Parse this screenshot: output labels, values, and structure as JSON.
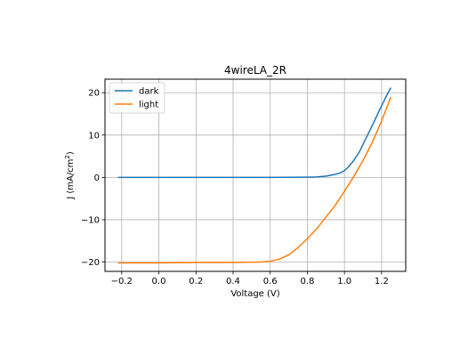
{
  "chart_data": {
    "type": "line",
    "title": "4wireLA_2R",
    "xlabel": "Voltage (V)",
    "ylabel_main": "J (mA/cm",
    "ylabel_sup": "2",
    "ylabel_end": ")",
    "xlim": [
      -0.29,
      1.33
    ],
    "ylim": [
      -22.2,
      23.2
    ],
    "x_ticks": [
      -0.2,
      0.0,
      0.2,
      0.4,
      0.6,
      0.8,
      1.0,
      1.2
    ],
    "x_tick_labels": [
      "−0.2",
      "0.0",
      "0.2",
      "0.4",
      "0.6",
      "0.8",
      "1.0",
      "1.2"
    ],
    "y_ticks": [
      -20,
      -10,
      0,
      10,
      20
    ],
    "y_tick_labels": [
      "−20",
      "−10",
      "0",
      "10",
      "20"
    ],
    "grid": true,
    "legend_position": "top-left",
    "series": [
      {
        "name": "dark",
        "color": "#1f77b4",
        "x": [
          -0.22,
          0.0,
          0.2,
          0.4,
          0.6,
          0.8,
          0.85,
          0.9,
          0.95,
          0.98,
          1.0,
          1.02,
          1.05,
          1.08,
          1.1,
          1.13,
          1.16,
          1.19,
          1.22,
          1.25
        ],
        "y": [
          0.0,
          0.0,
          0.0,
          0.0,
          0.0,
          0.05,
          0.1,
          0.3,
          0.7,
          1.1,
          1.6,
          2.4,
          4.0,
          6.0,
          7.8,
          10.5,
          13.2,
          16.0,
          18.7,
          21.2
        ]
      },
      {
        "name": "light",
        "color": "#ff7f0e",
        "x": [
          -0.22,
          0.0,
          0.2,
          0.4,
          0.55,
          0.6,
          0.65,
          0.7,
          0.75,
          0.8,
          0.85,
          0.9,
          0.95,
          1.0,
          1.05,
          1.1,
          1.15,
          1.2,
          1.25
        ],
        "y": [
          -20.2,
          -20.2,
          -20.1,
          -20.1,
          -20.0,
          -19.8,
          -19.3,
          -18.3,
          -16.6,
          -14.5,
          -12.2,
          -9.4,
          -6.6,
          -3.3,
          0.2,
          4.0,
          8.3,
          13.3,
          19.0
        ]
      }
    ]
  }
}
